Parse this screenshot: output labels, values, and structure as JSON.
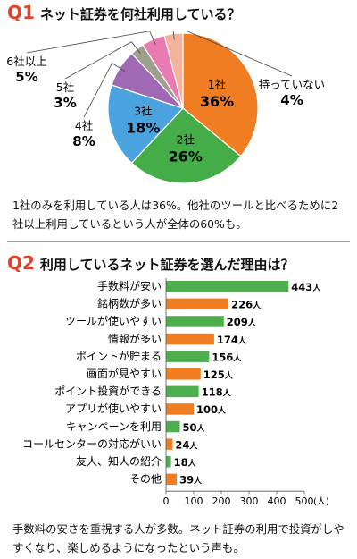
{
  "colors": {
    "accent": "#e0412a",
    "pie": [
      "#f07d22",
      "#45ad48",
      "#4aa3df",
      "#9f69b3",
      "#a09e8d",
      "#e97ab2",
      "#f3b39a"
    ],
    "bar_a": "#4cae4c",
    "bar_b": "#f07d22"
  },
  "q1": {
    "num": "Q1",
    "title": "ネット証券を何社利用している？",
    "note": "1社のみを利用している人は36%。他社のツールと比べるために2社以上利用しているという人が全体の60%も。"
  },
  "q2": {
    "num": "Q2",
    "title": "利用しているネット証券を選んだ理由は？",
    "note": "手数料の安さを重視する人が多数。ネット証券の利用で投資がしやすくなり、楽しめるようになったという声も。"
  },
  "chart_data": [
    {
      "type": "pie",
      "slices": [
        {
          "label": "1社",
          "value": 36,
          "display": "36%"
        },
        {
          "label": "2社",
          "value": 26,
          "display": "26%"
        },
        {
          "label": "3社",
          "value": 18,
          "display": "18%"
        },
        {
          "label": "4社",
          "value": 8,
          "display": "8%"
        },
        {
          "label": "5社",
          "value": 3,
          "display": "3%"
        },
        {
          "label": "6社以上",
          "value": 5,
          "display": "5%"
        },
        {
          "label": "持っていない",
          "value": 4,
          "display": "4%"
        }
      ]
    },
    {
      "type": "bar",
      "orientation": "horizontal",
      "categories": [
        "手数料が安い",
        "銘柄数が多い",
        "ツールが使いやすい",
        "情報が多い",
        "ポイントが貯まる",
        "画面が見やすい",
        "ポイント投資ができる",
        "アプリが使いやすい",
        "キャンペーンを利用",
        "コールセンターの対応がいい",
        "友人、知人の紹介",
        "その他"
      ],
      "values": [
        443,
        226,
        209,
        174,
        156,
        125,
        118,
        100,
        50,
        24,
        18,
        39
      ],
      "unit": "人",
      "xlim": [
        0,
        500
      ],
      "xticks": [
        0,
        100,
        200,
        300,
        400,
        500
      ],
      "xunit": "(人)"
    }
  ]
}
